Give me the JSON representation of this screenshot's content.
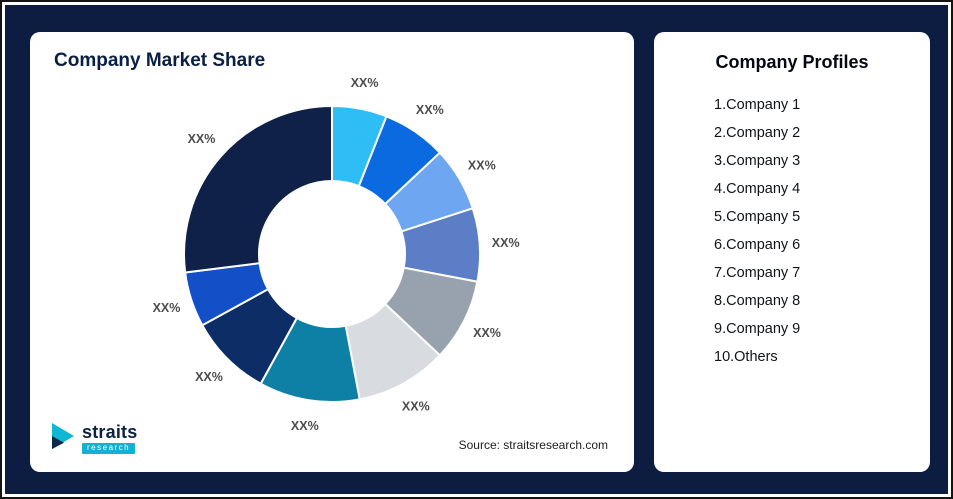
{
  "page": {
    "background": "#0d1d42",
    "card_background": "#ffffff"
  },
  "market_share_card": {
    "title": "Company Market Share",
    "source": "Source: straitsresearch.com"
  },
  "logo": {
    "name": "straits",
    "sub": "research",
    "icon": "straits-arrow-icon",
    "accent_color": "#14b1d2",
    "navy_color": "#0b2240"
  },
  "profiles_card": {
    "title": "Company Profiles",
    "items": [
      "1.Company 1",
      "2.Company 2",
      "3.Company 3",
      "4.Company 4",
      "5.Company 5",
      "6.Company 6",
      "7.Company 7",
      "8.Company 8",
      "9.Company 9",
      "10.Others"
    ]
  },
  "chart_data": {
    "type": "pie",
    "subtype": "donut",
    "title": "Company Market Share",
    "legend": "none",
    "start_angle_deg": 0,
    "direction": "clockwise",
    "inner_radius_ratio": 0.49,
    "value_note": "all slice labels shown as placeholder XX%; values below are visual arc-size estimates in percent",
    "segments": [
      {
        "name": "Company 1",
        "label": "XX%",
        "value": 6,
        "color": "#2fbdf5"
      },
      {
        "name": "Company 2",
        "label": "XX%",
        "value": 7,
        "color": "#0b6ae0"
      },
      {
        "name": "Company 3",
        "label": "XX%",
        "value": 7,
        "color": "#6fa6f2"
      },
      {
        "name": "Company 4",
        "label": "XX%",
        "value": 8,
        "color": "#5b7ec6"
      },
      {
        "name": "Company 5",
        "label": "XX%",
        "value": 9,
        "color": "#98a2ae"
      },
      {
        "name": "Company 6",
        "label": "XX%",
        "value": 10,
        "color": "#d8dbdf"
      },
      {
        "name": "Company 7",
        "label": "XX%",
        "value": 11,
        "color": "#0e80a6"
      },
      {
        "name": "Company 8",
        "label": "XX%",
        "value": 9,
        "color": "#0d2d66"
      },
      {
        "name": "Company 9",
        "label": "XX%",
        "value": 6,
        "color": "#1350c8"
      },
      {
        "name": "Others",
        "label": "XX%",
        "value": 27,
        "color": "#0f2149"
      }
    ]
  }
}
